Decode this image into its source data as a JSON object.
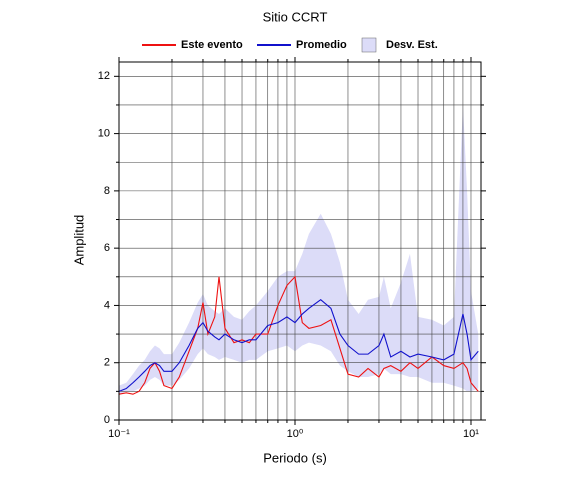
{
  "chart_data": {
    "type": "line",
    "title": "Sitio CCRT",
    "x_label": "Periodo (s)",
    "y_label": "Amplitud",
    "xscale": "log",
    "xlim": [
      0.1,
      11.4
    ],
    "ylim": [
      0,
      12.5
    ],
    "xticks": [
      {
        "value": 0.1,
        "label": "10⁻¹"
      },
      {
        "value": 1,
        "label": "10⁰"
      },
      {
        "value": 10,
        "label": "10¹"
      }
    ],
    "x_minor_ticks": [
      0.2,
      0.3,
      0.4,
      0.5,
      0.6,
      0.7,
      0.8,
      0.9,
      2,
      3,
      4,
      5,
      6,
      7,
      8,
      9
    ],
    "yticks": [
      0,
      2,
      4,
      6,
      8,
      10,
      12
    ],
    "y_minor_ticks": [
      1,
      3,
      5,
      7,
      9,
      11
    ],
    "grid": true,
    "x": [
      0.1,
      0.11,
      0.12,
      0.13,
      0.14,
      0.15,
      0.16,
      0.17,
      0.18,
      0.2,
      0.22,
      0.25,
      0.28,
      0.3,
      0.32,
      0.35,
      0.37,
      0.4,
      0.45,
      0.5,
      0.55,
      0.6,
      0.7,
      0.8,
      0.9,
      1.0,
      1.1,
      1.2,
      1.4,
      1.6,
      1.8,
      2.0,
      2.3,
      2.6,
      3.0,
      3.2,
      3.5,
      4.0,
      4.5,
      5,
      6,
      7,
      8,
      9,
      9.5,
      10,
      11
    ],
    "series": [
      {
        "name": "Este evento",
        "color": "#ee1111",
        "values": [
          0.9,
          0.95,
          0.9,
          1.0,
          1.3,
          1.8,
          2.0,
          1.7,
          1.2,
          1.1,
          1.5,
          2.4,
          3.2,
          4.1,
          3.0,
          3.6,
          5.0,
          3.2,
          2.7,
          2.8,
          2.7,
          3.0,
          3.0,
          4.0,
          4.7,
          5.0,
          3.4,
          3.2,
          3.3,
          3.5,
          2.5,
          1.6,
          1.5,
          1.8,
          1.5,
          1.8,
          1.9,
          1.7,
          2.0,
          1.8,
          2.2,
          1.9,
          1.8,
          2.0,
          1.8,
          1.3,
          1.0
        ]
      },
      {
        "name": "Promedio",
        "color": "#1111cc",
        "values": [
          1.0,
          1.1,
          1.3,
          1.5,
          1.7,
          1.9,
          2.0,
          1.9,
          1.7,
          1.7,
          2.0,
          2.6,
          3.2,
          3.4,
          3.1,
          2.9,
          2.8,
          3.0,
          2.8,
          2.7,
          2.8,
          2.8,
          3.3,
          3.4,
          3.6,
          3.4,
          3.7,
          3.9,
          4.2,
          3.9,
          3.0,
          2.6,
          2.3,
          2.3,
          2.6,
          3.0,
          2.2,
          2.4,
          2.2,
          2.3,
          2.2,
          2.1,
          2.3,
          3.7,
          3.0,
          2.1,
          2.4
        ]
      }
    ],
    "band": {
      "name": "Desv. Est.",
      "color": "#dcdcf8",
      "lower": [
        0.9,
        1.0,
        1.0,
        1.1,
        1.2,
        1.4,
        1.5,
        1.4,
        1.2,
        1.2,
        1.4,
        1.8,
        2.3,
        2.5,
        2.3,
        2.2,
        2.1,
        2.2,
        2.1,
        2.0,
        2.1,
        2.1,
        2.4,
        2.5,
        2.6,
        2.4,
        2.6,
        2.7,
        2.6,
        2.4,
        1.9,
        1.7,
        1.5,
        1.5,
        1.6,
        1.8,
        1.6,
        1.6,
        1.5,
        1.5,
        1.3,
        1.3,
        1.2,
        1.1,
        1.0,
        1.0,
        1.1
      ],
      "upper": [
        1.2,
        1.3,
        1.6,
        1.9,
        2.1,
        2.4,
        2.6,
        2.5,
        2.3,
        2.3,
        2.7,
        3.4,
        4.1,
        4.4,
        4.0,
        3.8,
        3.7,
        3.9,
        3.6,
        3.5,
        3.8,
        4.0,
        4.5,
        5.0,
        5.2,
        5.2,
        5.8,
        6.5,
        7.2,
        6.5,
        5.5,
        4.2,
        3.7,
        4.2,
        4.3,
        5.0,
        3.9,
        4.8,
        5.8,
        3.6,
        3.5,
        3.3,
        3.6,
        11.0,
        8.0,
        4.5,
        3.0
      ]
    }
  }
}
